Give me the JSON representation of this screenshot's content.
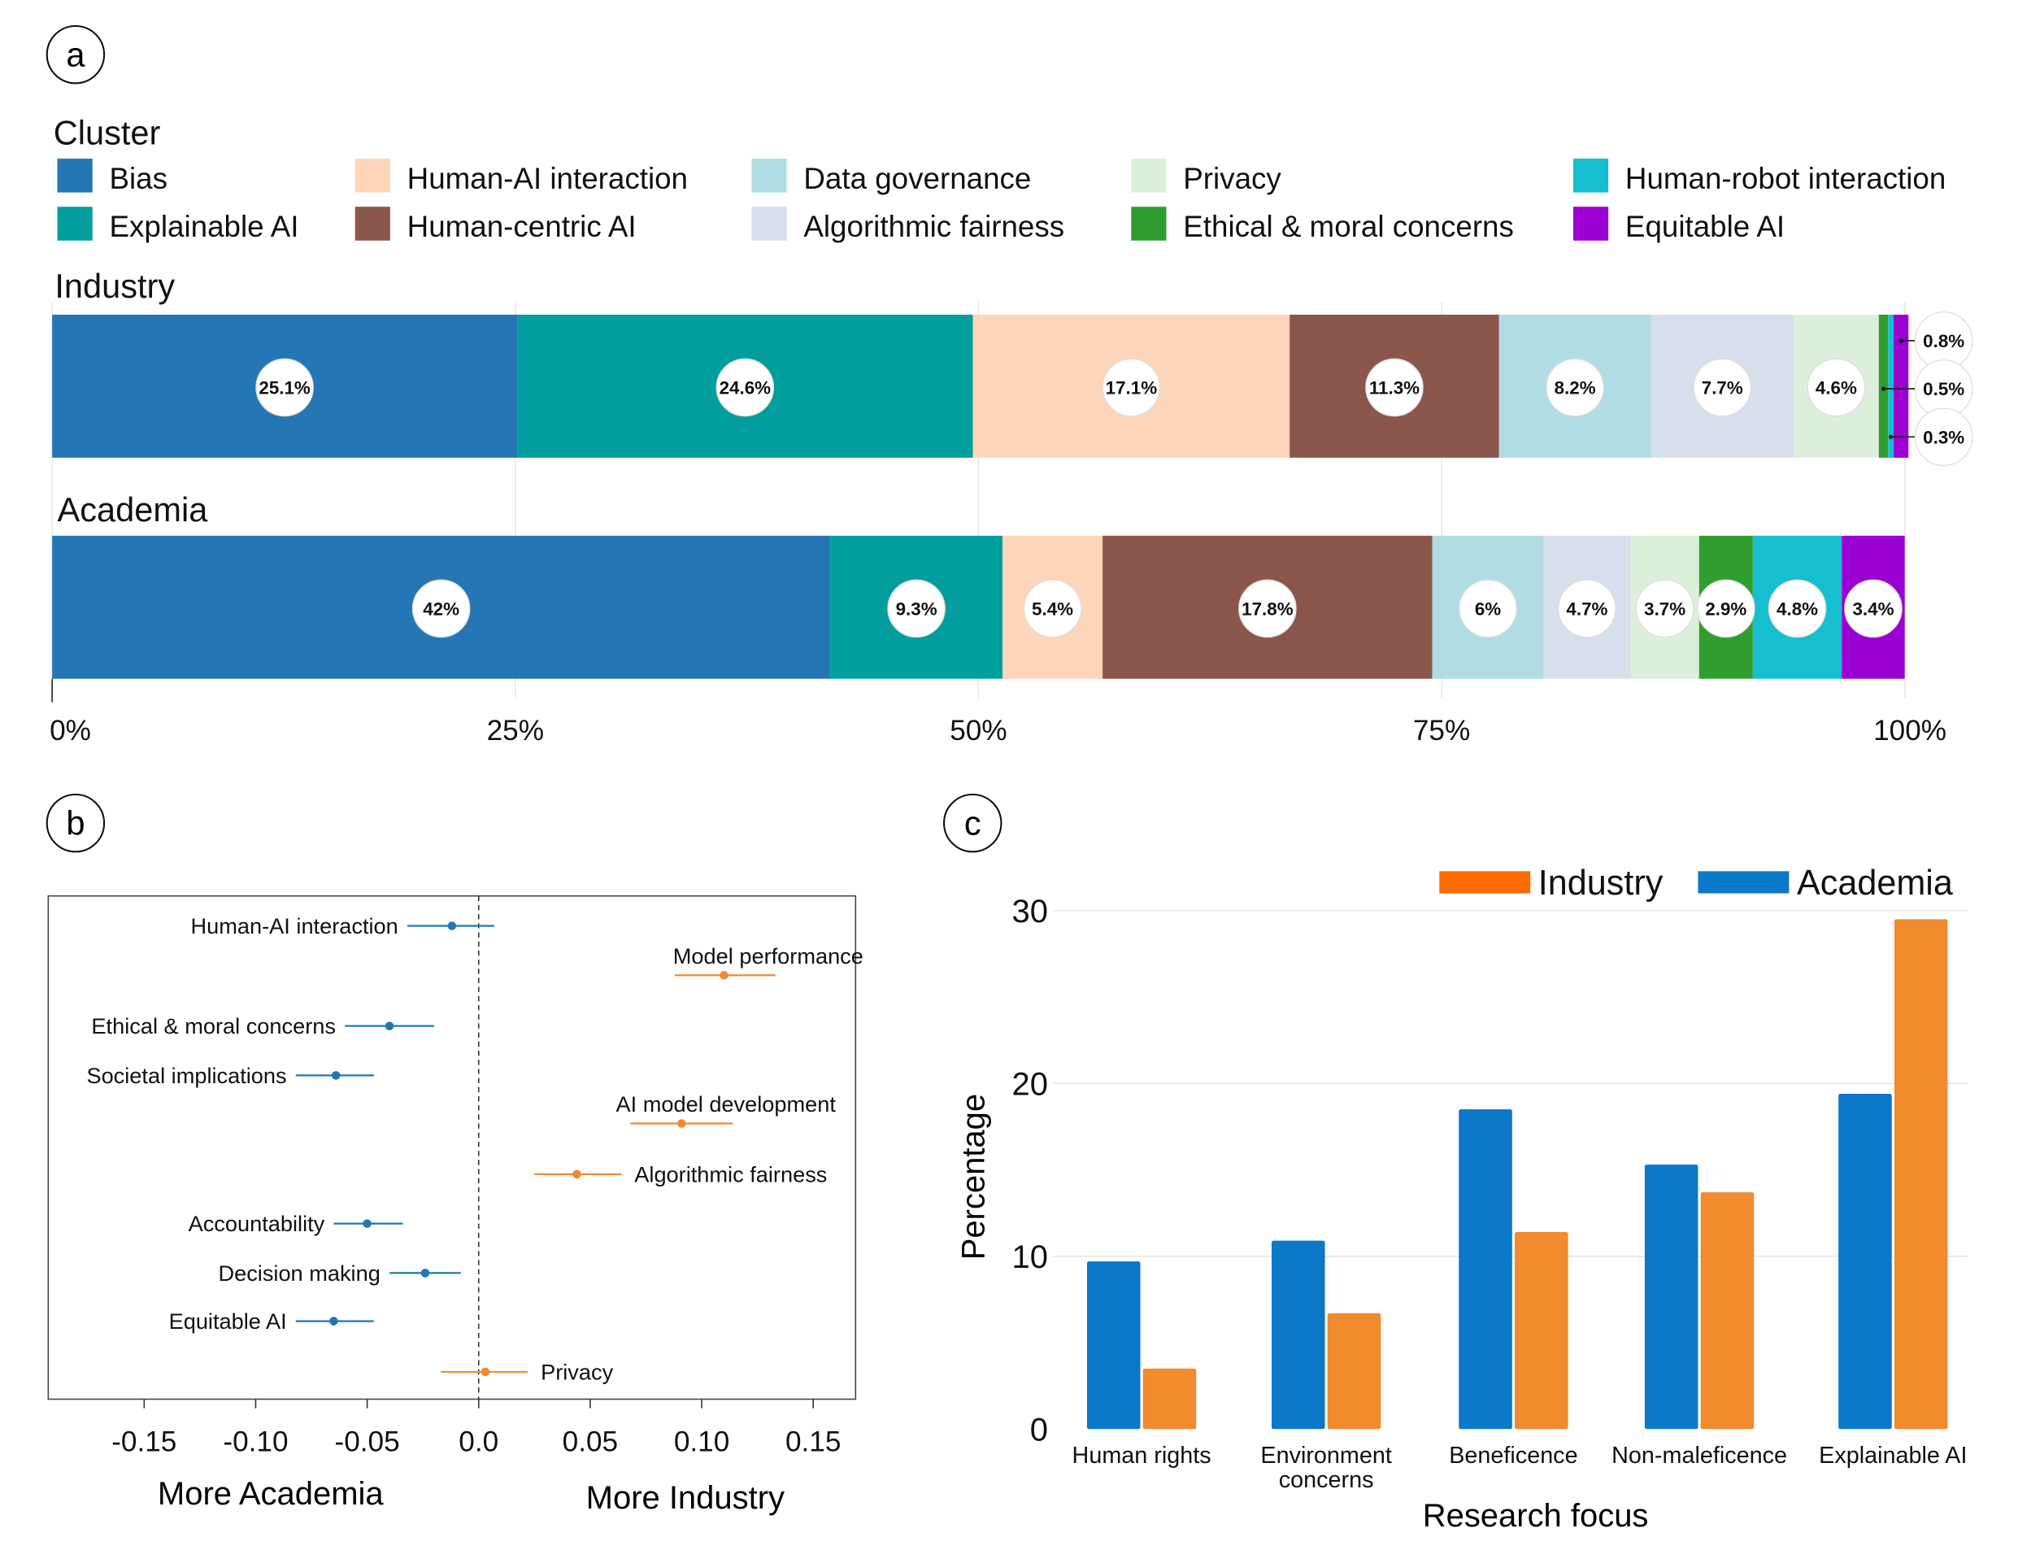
{
  "panels": {
    "a": "a",
    "b": "b",
    "c": "c"
  },
  "chart_data": [
    {
      "panel": "a",
      "type": "bar",
      "orientation": "horizontal-stacked",
      "legend_title": "Cluster",
      "legend": [
        {
          "name": "Bias",
          "color": "#2477b4"
        },
        {
          "name": "Explainable AI",
          "color": "#029e9e"
        },
        {
          "name": "Human-AI interaction",
          "color": "#fdd5b9"
        },
        {
          "name": "Human-centric AI",
          "color": "#8b564c"
        },
        {
          "name": "Data governance",
          "color": "#b0dde3"
        },
        {
          "name": "Algorithmic fairness",
          "color": "#d7dfec"
        },
        {
          "name": "Privacy",
          "color": "#dcefda"
        },
        {
          "name": "Ethical & moral concerns",
          "color": "#2f9e2f"
        },
        {
          "name": "Human-robot interaction",
          "color": "#17becf"
        },
        {
          "name": "Equitable AI",
          "color": "#9a00d1"
        }
      ],
      "series": [
        {
          "name": "Industry",
          "values": [
            25.1,
            24.6,
            17.1,
            11.3,
            8.2,
            7.7,
            4.6,
            0.5,
            0.3,
            0.8
          ],
          "labels": [
            "25.1%",
            "24.6%",
            "17.1%",
            "11.3%",
            "8.2%",
            "7.7%",
            "4.6%",
            "0.5%",
            "0.3%",
            "0.8%"
          ]
        },
        {
          "name": "Academia",
          "values": [
            42,
            9.3,
            5.4,
            17.8,
            6,
            4.7,
            3.7,
            2.9,
            4.8,
            3.4
          ],
          "labels": [
            "42%",
            "9.3%",
            "5.4%",
            "17.8%",
            "6%",
            "4.7%",
            "3.7%",
            "2.9%",
            "4.8%",
            "3.4%"
          ]
        }
      ],
      "x_ticks": [
        "0%",
        "25%",
        "50%",
        "75%",
        "100%"
      ],
      "xlim": [
        0,
        100
      ]
    },
    {
      "panel": "b",
      "type": "scatter",
      "style": "point-with-interval",
      "points": [
        {
          "label": "Human-AI interaction",
          "value": -0.012,
          "low": -0.032,
          "high": 0.007,
          "group": "academia"
        },
        {
          "label": "Model performance",
          "value": 0.11,
          "low": 0.088,
          "high": 0.133,
          "group": "industry"
        },
        {
          "label": "Ethical & moral concerns",
          "value": -0.04,
          "low": -0.06,
          "high": -0.02,
          "group": "academia"
        },
        {
          "label": "Societal implications",
          "value": -0.064,
          "low": -0.082,
          "high": -0.047,
          "group": "academia"
        },
        {
          "label": "AI model development",
          "value": 0.091,
          "low": 0.068,
          "high": 0.114,
          "group": "industry"
        },
        {
          "label": "Algorithmic fairness",
          "value": 0.044,
          "low": 0.025,
          "high": 0.064,
          "group": "industry"
        },
        {
          "label": "Accountability",
          "value": -0.05,
          "low": -0.065,
          "high": -0.034,
          "group": "academia"
        },
        {
          "label": "Decision making",
          "value": -0.024,
          "low": -0.04,
          "high": -0.008,
          "group": "academia"
        },
        {
          "label": "Equitable AI",
          "value": -0.065,
          "low": -0.082,
          "high": -0.047,
          "group": "academia"
        },
        {
          "label": "Privacy",
          "value": 0.003,
          "low": -0.017,
          "high": 0.022,
          "group": "industry"
        }
      ],
      "colors": {
        "academia": "#1f77b4",
        "industry": "#f28a30"
      },
      "x_ticks": [
        "-0.15",
        "-0.10",
        "-0.05",
        "0.0",
        "0.05",
        "0.10",
        "0.15"
      ],
      "x_tick_values": [
        -0.15,
        -0.1,
        -0.05,
        0.0,
        0.05,
        0.1,
        0.15
      ],
      "xlim": [
        -0.193,
        0.169
      ],
      "xlabel_left": "More Academia",
      "xlabel_right": "More Industry"
    },
    {
      "panel": "c",
      "type": "bar",
      "categories": [
        "Human rights",
        "Environment concerns",
        "Beneficence",
        "Non-maleficence",
        "Explainable AI"
      ],
      "category_lines": [
        [
          "Human rights"
        ],
        [
          "Environment",
          "concerns"
        ],
        [
          "Beneficence"
        ],
        [
          "Non-maleficence"
        ],
        [
          "Explainable AI"
        ]
      ],
      "series": [
        {
          "name": "Academia",
          "color": "#0b78c9",
          "values": [
            9.7,
            10.9,
            18.5,
            15.3,
            19.4
          ]
        },
        {
          "name": "Industry",
          "color": "#f28a2e",
          "values": [
            3.5,
            6.7,
            11.4,
            13.7,
            29.5
          ]
        }
      ],
      "legend": [
        {
          "name": "Industry",
          "color": "#ff6a00"
        },
        {
          "name": "Academia",
          "color": "#0b78c9"
        }
      ],
      "y_ticks": [
        "0",
        "10",
        "20",
        "30"
      ],
      "y_tick_values": [
        0,
        10,
        20,
        30
      ],
      "ylim": [
        0,
        31
      ],
      "xlabel": "Research focus",
      "ylabel": "Percentage"
    }
  ]
}
